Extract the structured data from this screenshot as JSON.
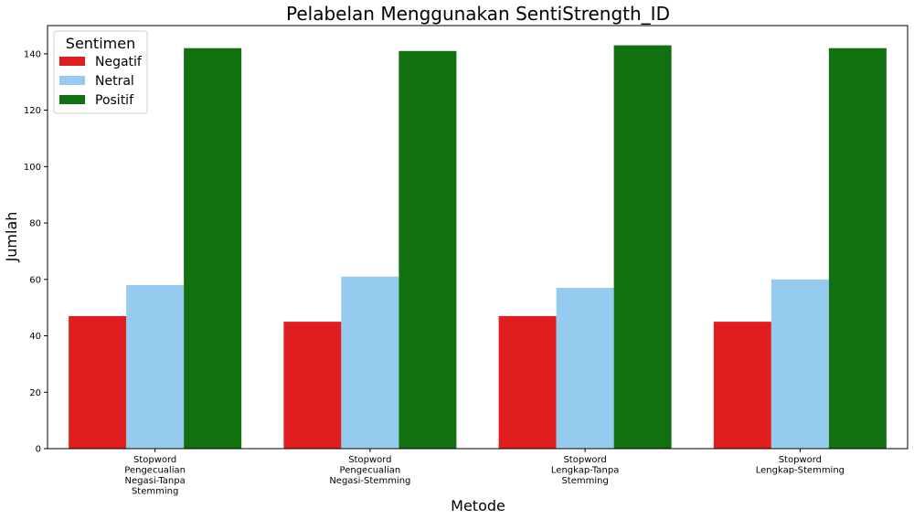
{
  "chart_data": {
    "type": "bar",
    "title": "Pelabelan Menggunakan SentiStrength_ID",
    "xlabel": "Metode",
    "ylabel": "Jumlah",
    "categories": [
      [
        "Stopword",
        "Pengecualian",
        "Negasi-Tanpa",
        "Stemming"
      ],
      [
        "Stopword",
        "Pengecualian",
        "Negasi-Stemming"
      ],
      [
        "Stopword",
        "Lengkap-Tanpa",
        "Stemming"
      ],
      [
        "Stopword",
        "Lengkap-Stemming"
      ]
    ],
    "series": [
      {
        "name": "Negatif",
        "color": "#e01e20",
        "values": [
          47,
          45,
          47,
          45
        ]
      },
      {
        "name": "Netral",
        "color": "#95cbee",
        "values": [
          58,
          61,
          57,
          60
        ]
      },
      {
        "name": "Positif",
        "color": "#117010",
        "values": [
          142,
          141,
          143,
          142
        ]
      }
    ],
    "ylim": [
      0,
      150
    ],
    "yticks": [
      0,
      20,
      40,
      60,
      80,
      100,
      120,
      140
    ],
    "legend": {
      "title": "Sentimen",
      "placement": "top-left"
    },
    "grid": false
  }
}
